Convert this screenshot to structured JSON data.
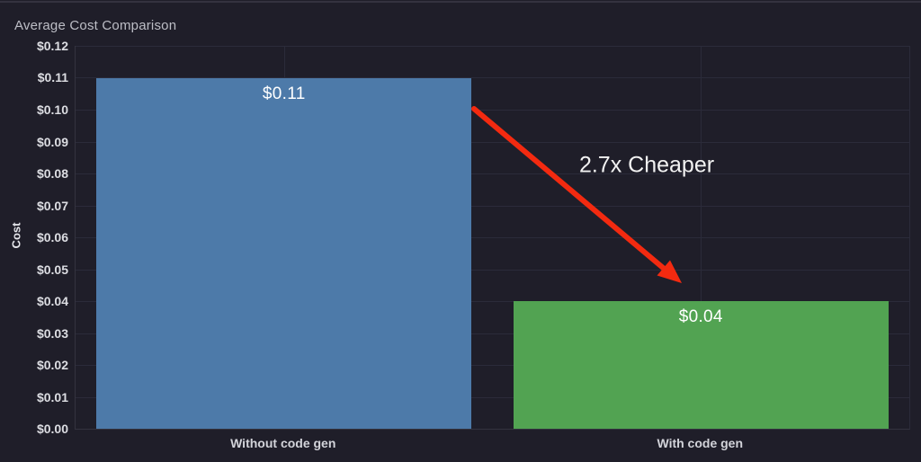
{
  "panel": {
    "title": "Average Cost Comparison",
    "background": "#1f1e29",
    "top_border_color": "#34323f"
  },
  "chart_data": {
    "type": "bar",
    "title": "Average Cost Comparison",
    "xlabel": "",
    "ylabel": "Cost",
    "categories": [
      "Without code gen",
      "With code gen"
    ],
    "values": [
      0.11,
      0.04
    ],
    "bar_labels": [
      "$0.11",
      "$0.04"
    ],
    "bar_colors": [
      "#4d7aa9",
      "#52a352"
    ],
    "ylim": [
      0,
      0.12
    ],
    "ytick_step": 0.01,
    "ytick_labels": [
      "$0.00",
      "$0.01",
      "$0.02",
      "$0.03",
      "$0.04",
      "$0.05",
      "$0.06",
      "$0.07",
      "$0.08",
      "$0.09",
      "$0.10",
      "$0.11",
      "$0.12"
    ],
    "grid": true,
    "legend": "none",
    "annotation": {
      "text": "2.7x Cheaper",
      "text_color": "#f2f2f2",
      "arrow_color": "#f32a10"
    }
  },
  "colors": {
    "grid_line": "#2b2b3a",
    "axis_line": "#34333f",
    "tick_label": "#dcdde2",
    "title_text": "#bdbec6",
    "x_label": "#d3d4da",
    "bar_label": "#ffffff"
  }
}
